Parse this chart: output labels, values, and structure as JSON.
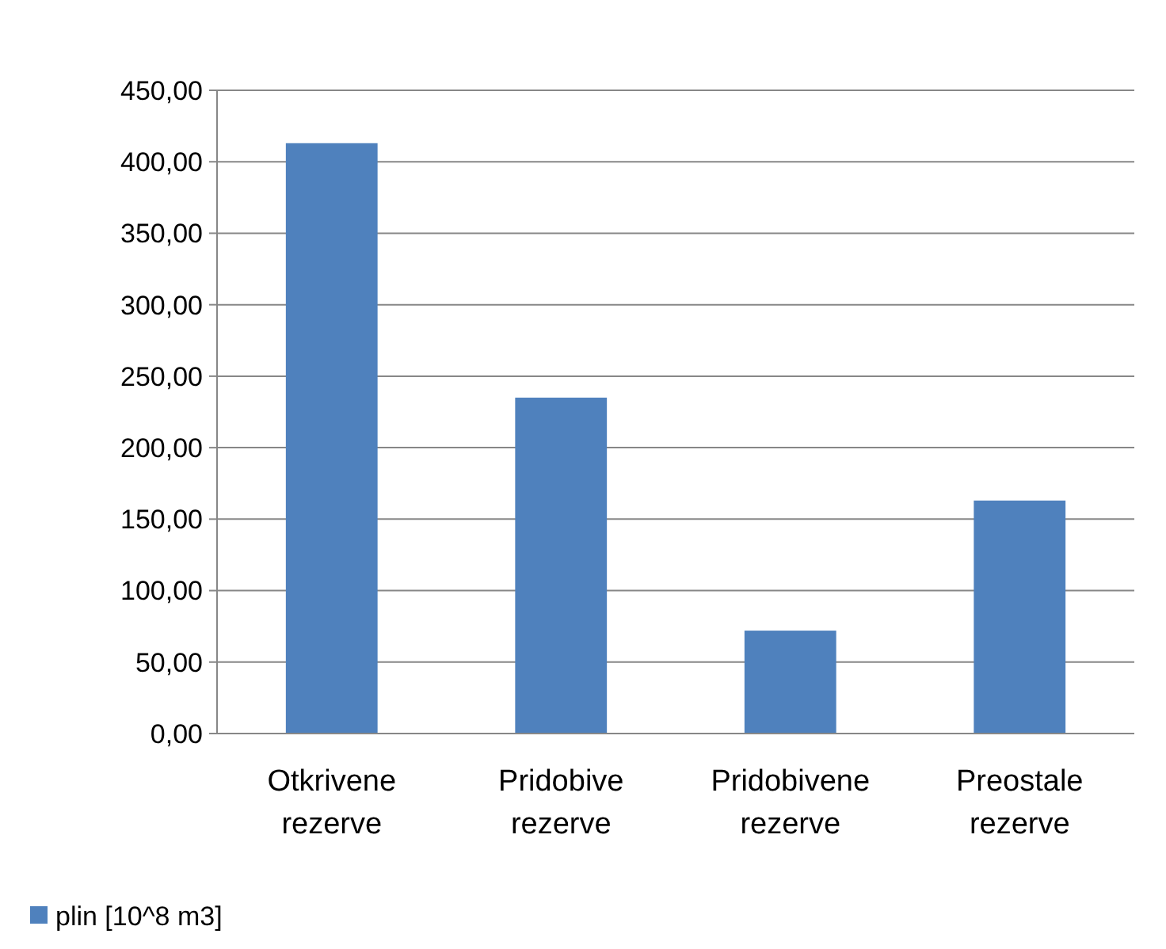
{
  "chart_data": {
    "type": "bar",
    "categories": [
      "Otkrivene rezerve",
      "Pridobive rezerve",
      "Pridobivene rezerve",
      "Preostale rezerve"
    ],
    "series": [
      {
        "name": "plin [10^8 m3]",
        "color": "#4f81bd",
        "values": [
          413,
          235,
          72,
          163
        ]
      }
    ],
    "ylim": [
      0,
      450
    ],
    "yticks": [
      {
        "value": 0,
        "label": "0,00"
      },
      {
        "value": 50,
        "label": "50,00"
      },
      {
        "value": 100,
        "label": "100,00"
      },
      {
        "value": 150,
        "label": "150,00"
      },
      {
        "value": 200,
        "label": "200,00"
      },
      {
        "value": 250,
        "label": "250,00"
      },
      {
        "value": 300,
        "label": "300,00"
      },
      {
        "value": 350,
        "label": "350,00"
      },
      {
        "value": 400,
        "label": "400,00"
      },
      {
        "value": 450,
        "label": "450,00"
      }
    ],
    "grid": "y",
    "legend": "bottom left"
  }
}
